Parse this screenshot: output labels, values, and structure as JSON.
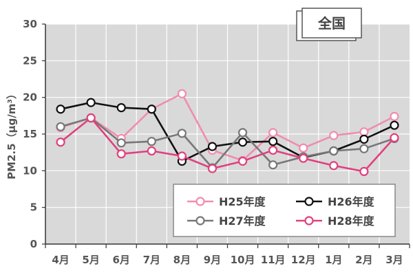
{
  "chart_data": {
    "type": "line",
    "title": "",
    "badge": "全国",
    "xlabel": "",
    "ylabel": "PM2.5（μg/m³）",
    "ylim": [
      0,
      30
    ],
    "yticks": [
      "0",
      "5",
      "10",
      "15",
      "20",
      "25",
      "30"
    ],
    "categories": [
      "4月",
      "5月",
      "6月",
      "7月",
      "8月",
      "9月",
      "10月",
      "11月",
      "12月",
      "1月",
      "2月",
      "3月"
    ],
    "grid": true,
    "legend_position": "bottom-right",
    "series": [
      {
        "name": "H25年度",
        "color": "#f08cb0",
        "marker_fill": "#ffffff",
        "values": [
          15.9,
          17.2,
          14.4,
          18.4,
          20.5,
          12.8,
          11.4,
          15.2,
          13.1,
          14.8,
          15.3,
          17.4
        ]
      },
      {
        "name": "H26年度",
        "color": "#111111",
        "marker_fill": "#ffffff",
        "values": [
          18.4,
          19.3,
          18.6,
          18.4,
          11.3,
          13.3,
          13.9,
          14.0,
          11.8,
          12.7,
          14.3,
          16.2
        ]
      },
      {
        "name": "H27年度",
        "color": "#777777",
        "marker_fill": "#ffffff",
        "values": [
          16.0,
          17.2,
          13.8,
          14.0,
          15.1,
          10.4,
          15.2,
          10.8,
          11.9,
          12.7,
          13.0,
          14.4
        ]
      },
      {
        "name": "H28年度",
        "color": "#e0407e",
        "marker_fill": "#ffffff",
        "values": [
          13.9,
          17.2,
          12.3,
          12.7,
          12.0,
          10.3,
          11.3,
          12.8,
          11.7,
          10.7,
          9.9,
          14.5
        ]
      }
    ]
  }
}
